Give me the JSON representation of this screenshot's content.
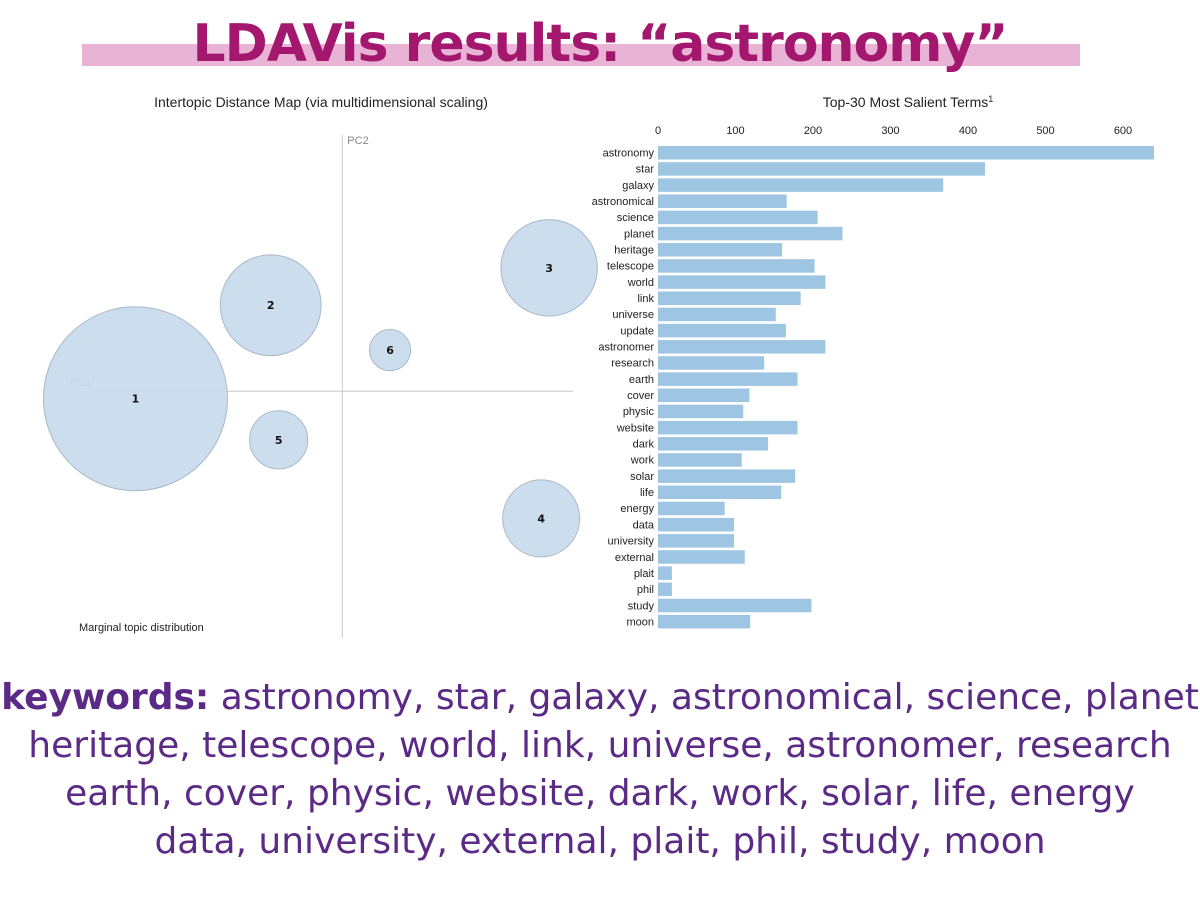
{
  "slide": {
    "title": "LDAVis results: “astronomy”",
    "keywords_lead": "keywords:",
    "keywords_lines": [
      "astronomy, star, galaxy, astronomical, science, planet",
      "heritage, telescope, world, link, universe, astronomer, research",
      "earth, cover, physic, website, dark, work, solar, life, energy",
      "data, university, external, plait, phil, study, moon"
    ],
    "colors": {
      "title": "#a3186e",
      "highlight": "#e9b3d6",
      "keywords": "#5b2a86"
    }
  },
  "chart_data": [
    {
      "type": "scatter",
      "title": "Intertopic Distance Map (via multidimensional scaling)",
      "xlabel": "PC1",
      "ylabel": "PC2",
      "note": "Marginal topic distribution",
      "marker_color": "#c9dcec",
      "marker_stroke": "#a9b9c6",
      "topics": [
        {
          "label": "1",
          "x": -0.26,
          "y": -0.02,
          "size": 0.4
        },
        {
          "label": "2",
          "x": -0.09,
          "y": 0.23,
          "size": 0.12
        },
        {
          "label": "3",
          "x": 0.26,
          "y": 0.33,
          "size": 0.11
        },
        {
          "label": "4",
          "x": 0.25,
          "y": -0.34,
          "size": 0.07
        },
        {
          "label": "5",
          "x": -0.08,
          "y": -0.13,
          "size": 0.04
        },
        {
          "label": "6",
          "x": 0.06,
          "y": 0.11,
          "size": 0.02
        }
      ],
      "xlim": [
        -0.38,
        0.29
      ],
      "ylim": [
        -0.66,
        0.68
      ]
    },
    {
      "type": "bar",
      "orientation": "horizontal",
      "title": "Top-30 Most Salient Terms",
      "title_superscript": "1",
      "bar_color": "#9ec6e2",
      "xlim": [
        0,
        640
      ],
      "xticks": [
        0,
        100,
        200,
        300,
        400,
        500,
        600
      ],
      "categories": [
        "astronomy",
        "star",
        "galaxy",
        "astronomical",
        "science",
        "planet",
        "heritage",
        "telescope",
        "world",
        "link",
        "universe",
        "update",
        "astronomer",
        "research",
        "earth",
        "cover",
        "physic",
        "website",
        "dark",
        "work",
        "solar",
        "life",
        "energy",
        "data",
        "university",
        "external",
        "plait",
        "phil",
        "study",
        "moon"
      ],
      "values": [
        640,
        422,
        368,
        166,
        206,
        238,
        160,
        202,
        216,
        184,
        152,
        165,
        216,
        137,
        180,
        118,
        110,
        180,
        142,
        108,
        177,
        159,
        86,
        98,
        98,
        112,
        18,
        18,
        198,
        119
      ]
    }
  ]
}
